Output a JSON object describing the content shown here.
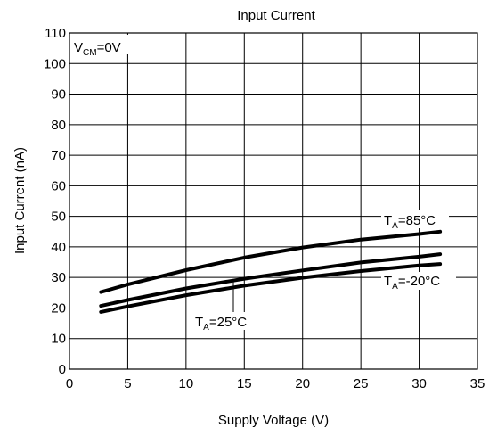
{
  "chart_data": {
    "type": "line",
    "title": "Input Current",
    "xlabel": "Supply Voltage (V)",
    "ylabel": "Input Current (nA)",
    "xlim": [
      0,
      35
    ],
    "ylim": [
      0,
      110
    ],
    "xticks": [
      0,
      5,
      10,
      15,
      20,
      25,
      30,
      35
    ],
    "yticks": [
      0,
      10,
      20,
      30,
      40,
      50,
      60,
      70,
      80,
      90,
      100,
      110
    ],
    "grid": true,
    "annotation": "V_CM=0V",
    "series": [
      {
        "name": "TA=85°C",
        "label_parts": [
          "T",
          "A",
          "=85°C"
        ],
        "x": [
          2.7,
          5,
          10,
          15,
          20,
          25,
          30,
          31.8
        ],
        "y": [
          25.2,
          27.7,
          32.4,
          36.5,
          39.8,
          42.4,
          44.2,
          45
        ]
      },
      {
        "name": "TA=25°C",
        "label_parts": [
          "T",
          "A",
          "=25°C"
        ],
        "x": [
          2.7,
          5,
          10,
          15,
          20,
          25,
          30,
          31.8
        ],
        "y": [
          20.7,
          22.6,
          26.4,
          29.6,
          32.3,
          34.9,
          36.8,
          37.6
        ]
      },
      {
        "name": "TA=-20°C",
        "label_parts": [
          "T",
          "A",
          "=-20°C"
        ],
        "x": [
          2.7,
          5,
          10,
          15,
          20,
          25,
          30,
          31.8
        ],
        "y": [
          18.7,
          20.5,
          24.2,
          27.3,
          29.9,
          32.1,
          33.9,
          34.4
        ]
      }
    ]
  }
}
